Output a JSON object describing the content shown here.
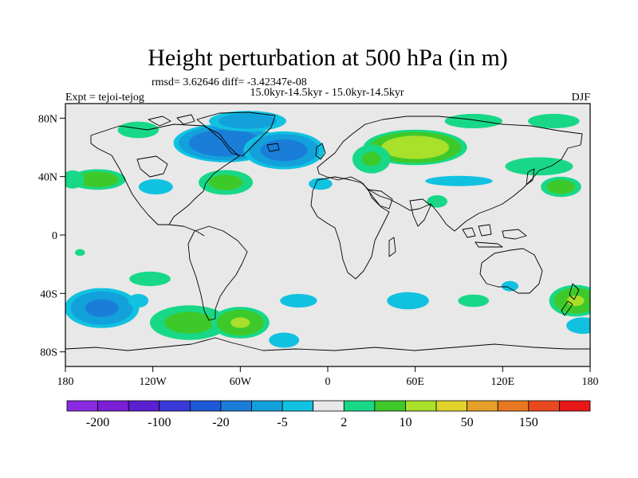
{
  "chart_data": {
    "type": "heatmap",
    "title": "Height perturbation at 500 hPa (in m)",
    "stats_line": "rmsd= 3.62646 diff= -3.42347e-08",
    "period_line": "15.0kyr-14.5kyr - 15.0kyr-14.5kyr",
    "left_label": "Expt = tejoi-tejog",
    "right_label": "DJF",
    "projection": "cylindrical equidistant",
    "xlim": [
      -180,
      180
    ],
    "ylim": [
      -90,
      90
    ],
    "x_ticks": [
      {
        "value": -180,
        "label": "180"
      },
      {
        "value": -120,
        "label": "120W"
      },
      {
        "value": -60,
        "label": "60W"
      },
      {
        "value": 0,
        "label": "0"
      },
      {
        "value": 60,
        "label": "60E"
      },
      {
        "value": 120,
        "label": "120E"
      },
      {
        "value": 180,
        "label": "180"
      }
    ],
    "y_ticks": [
      {
        "value": 80,
        "label": "80N"
      },
      {
        "value": 40,
        "label": "40N"
      },
      {
        "value": 0,
        "label": "0"
      },
      {
        "value": -40,
        "label": "40S"
      },
      {
        "value": -80,
        "label": "80S"
      }
    ],
    "colorbar": {
      "levels": [
        -200,
        -150,
        -100,
        -50,
        -20,
        -10,
        -5,
        -2,
        2,
        5,
        10,
        20,
        50,
        100,
        150,
        200
      ],
      "colors": [
        "#8a2be2",
        "#7a1fd6",
        "#5a1fd0",
        "#3a3ad8",
        "#1e5ad8",
        "#1a7ed8",
        "#13a1dc",
        "#10c2e0",
        "#e8e8e8",
        "#18d888",
        "#3ec92a",
        "#a8e02a",
        "#e0d22a",
        "#e6a028",
        "#e87820",
        "#e84a20",
        "#e81818"
      ],
      "labels": [
        {
          "level": -200,
          "text": "-200"
        },
        {
          "level": -100,
          "text": "-100"
        },
        {
          "level": -20,
          "text": "-20"
        },
        {
          "level": -5,
          "text": "-5"
        },
        {
          "level": 2,
          "text": "2"
        },
        {
          "level": 10,
          "text": "10"
        },
        {
          "level": 50,
          "text": "50"
        },
        {
          "level": 150,
          "text": "150"
        }
      ]
    },
    "anomaly_centers": [
      {
        "lon": -70,
        "lat": 63,
        "value": -18,
        "r_lon": 38,
        "r_lat": 14
      },
      {
        "lon": -30,
        "lat": 58,
        "value": -14,
        "r_lon": 30,
        "r_lat": 14
      },
      {
        "lon": -55,
        "lat": 78,
        "value": -9,
        "r_lon": 30,
        "r_lat": 8
      },
      {
        "lon": -158,
        "lat": 38,
        "value": 9,
        "r_lon": 22,
        "r_lat": 8
      },
      {
        "lon": -175,
        "lat": 38,
        "value": 5,
        "r_lon": 10,
        "r_lat": 8
      },
      {
        "lon": -130,
        "lat": 72,
        "value": 4,
        "r_lon": 20,
        "r_lat": 8
      },
      {
        "lon": -118,
        "lat": 33,
        "value": -3.5,
        "r_lon": 18,
        "r_lat": 8
      },
      {
        "lon": -70,
        "lat": 36,
        "value": 7,
        "r_lon": 22,
        "r_lat": 10
      },
      {
        "lon": -5,
        "lat": 35,
        "value": -3,
        "r_lon": 14,
        "r_lat": 7
      },
      {
        "lon": 60,
        "lat": 60,
        "value": 16,
        "r_lon": 38,
        "r_lat": 13
      },
      {
        "lon": 30,
        "lat": 52,
        "value": 6,
        "r_lon": 16,
        "r_lat": 12
      },
      {
        "lon": 100,
        "lat": 78,
        "value": 4,
        "r_lon": 28,
        "r_lat": 7
      },
      {
        "lon": 155,
        "lat": 78,
        "value": 4,
        "r_lon": 25,
        "r_lat": 7
      },
      {
        "lon": 145,
        "lat": 47,
        "value": 5,
        "r_lon": 30,
        "r_lat": 8
      },
      {
        "lon": 90,
        "lat": 37,
        "value": -3,
        "r_lon": 40,
        "r_lat": 6
      },
      {
        "lon": 160,
        "lat": 33,
        "value": 8,
        "r_lon": 16,
        "r_lat": 8
      },
      {
        "lon": 75,
        "lat": 23,
        "value": 4,
        "r_lon": 10,
        "r_lat": 6
      },
      {
        "lon": -155,
        "lat": -50,
        "value": -12,
        "r_lon": 28,
        "r_lat": 15
      },
      {
        "lon": -122,
        "lat": -30,
        "value": 4,
        "r_lon": 20,
        "r_lat": 7
      },
      {
        "lon": -95,
        "lat": -60,
        "value": 7,
        "r_lon": 32,
        "r_lat": 14
      },
      {
        "lon": -60,
        "lat": -60,
        "value": 11,
        "r_lon": 22,
        "r_lat": 12
      },
      {
        "lon": -20,
        "lat": -45,
        "value": -3,
        "r_lon": 22,
        "r_lat": 8
      },
      {
        "lon": -30,
        "lat": -72,
        "value": -3,
        "r_lon": 18,
        "r_lat": 9
      },
      {
        "lon": 55,
        "lat": -45,
        "value": -3.5,
        "r_lon": 22,
        "r_lat": 9
      },
      {
        "lon": 100,
        "lat": -45,
        "value": 4,
        "r_lon": 15,
        "r_lat": 6
      },
      {
        "lon": 125,
        "lat": -35,
        "value": -3,
        "r_lon": 10,
        "r_lat": 6
      },
      {
        "lon": 170,
        "lat": -45,
        "value": 11,
        "r_lon": 20,
        "r_lat": 12
      },
      {
        "lon": 175,
        "lat": -62,
        "value": -4,
        "r_lon": 16,
        "r_lat": 8
      },
      {
        "lon": -130,
        "lat": -45,
        "value": -3,
        "r_lon": 12,
        "r_lat": 8
      },
      {
        "lon": -170,
        "lat": -12,
        "value": 3,
        "r_lon": 6,
        "r_lat": 4
      }
    ]
  }
}
